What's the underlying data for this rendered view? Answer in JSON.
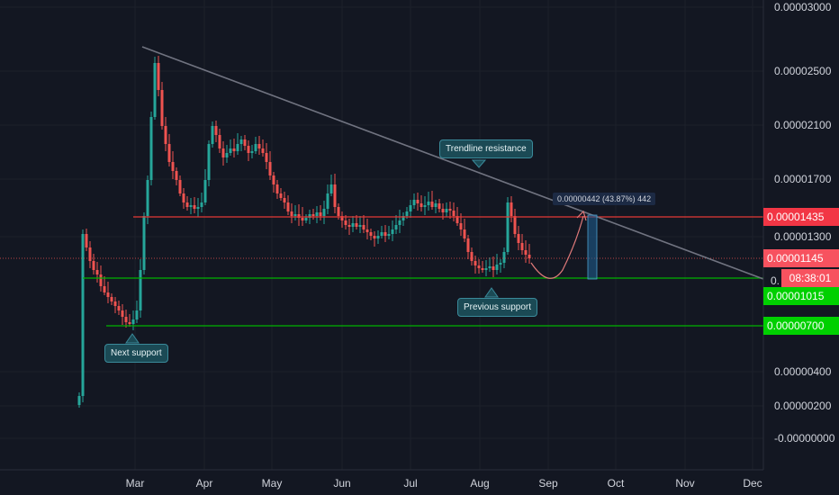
{
  "chart_data": {
    "type": "candlestick",
    "x_ticks": [
      "Mar",
      "Apr",
      "May",
      "Jun",
      "Jul",
      "Aug",
      "Sep",
      "Oct",
      "Nov",
      "Dec"
    ],
    "y_ticks": [
      "0.00003000",
      "0.00002500",
      "0.00002100",
      "0.00001700",
      "0.00001300",
      "0.00000400",
      "0.00000200",
      "-0.00000000"
    ],
    "ylim": [
      -3e-07,
      3e-05
    ],
    "price_labels": [
      {
        "text": "0.00001435",
        "color": "#f23645"
      },
      {
        "text": "0.00001145",
        "color": "#f7525f"
      },
      {
        "text": "0.00001015",
        "color": "#00c800"
      },
      {
        "text": "0.00000700",
        "color": "#00c800"
      }
    ],
    "countdown": "08:38:01",
    "partial_tick": "0.",
    "annotations": {
      "trendline_resistance": "Trendline resistance",
      "previous_support": "Previous support",
      "next_support": "Next support",
      "measure": "0.00000442 (43.87%) 442"
    },
    "levels": {
      "resistance": 1.435e-05,
      "current": 1.145e-05,
      "support1": 1.015e-05,
      "support2": 7e-06
    },
    "trendline": {
      "from": [
        "Mar",
        2.65e-05
      ],
      "to": [
        "Dec",
        1.02e-05
      ]
    },
    "candles_approx": [
      {
        "t": "Feb",
        "o": 6.5e-06,
        "h": 1.25e-05,
        "l": 2.2e-06,
        "c": 1.15e-05
      },
      {
        "t": "Mar",
        "o": 7.2e-06,
        "h": 2.65e-05,
        "l": 6.8e-06,
        "c": 2.28e-05
      },
      {
        "t": "Apr",
        "o": 1.6e-05,
        "h": 2.15e-05,
        "l": 1.43e-05,
        "c": 1.85e-05
      },
      {
        "t": "May",
        "o": 1.6e-05,
        "h": 1.98e-05,
        "l": 1.32e-05,
        "c": 1.42e-05
      },
      {
        "t": "Jun",
        "o": 1.4e-05,
        "h": 1.65e-05,
        "l": 1.28e-05,
        "c": 1.36e-05
      },
      {
        "t": "Jul",
        "o": 1.42e-05,
        "h": 1.58e-05,
        "l": 1.28e-05,
        "c": 1.48e-05
      },
      {
        "t": "Aug",
        "o": 1.02e-05,
        "h": 1.62e-05,
        "l": 9.8e-06,
        "c": 1.15e-05
      }
    ],
    "colors": {
      "up": "#26a69a",
      "down": "#ef5350",
      "background": "#131722",
      "trendline": "#6b6f7a"
    }
  }
}
